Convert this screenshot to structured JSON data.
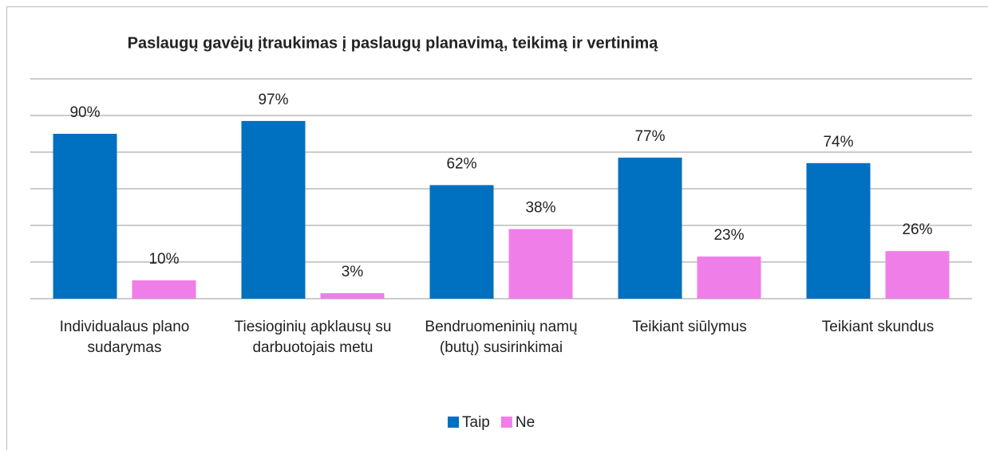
{
  "chart_data": {
    "type": "bar",
    "title": "Paslaugų gavėjų įtraukimas į paslaugų planavimą, teikimą ir vertinimą",
    "categories": [
      "Individualaus plano sudarymas",
      "Tiesioginių apklausų su darbuotojais metu",
      "Bendruomeninių namų (butų) susirinkimai",
      "Teikiant siūlymus",
      "Teikiant skundus"
    ],
    "series": [
      {
        "name": "Taip",
        "color": "#0070c0",
        "values": [
          90,
          97,
          62,
          77,
          74
        ],
        "value_labels": [
          "90%",
          "97%",
          "62%",
          "77%",
          "74%"
        ]
      },
      {
        "name": "Ne",
        "color": "#f07ee8",
        "values": [
          10,
          3,
          38,
          23,
          26
        ],
        "value_labels": [
          "10%",
          "3%",
          "38%",
          "23%",
          "26%"
        ]
      }
    ],
    "ylim": [
      0,
      120
    ],
    "yticks": [
      0,
      20,
      40,
      60,
      80,
      100,
      120
    ],
    "grid": true,
    "legend": "bottom"
  }
}
